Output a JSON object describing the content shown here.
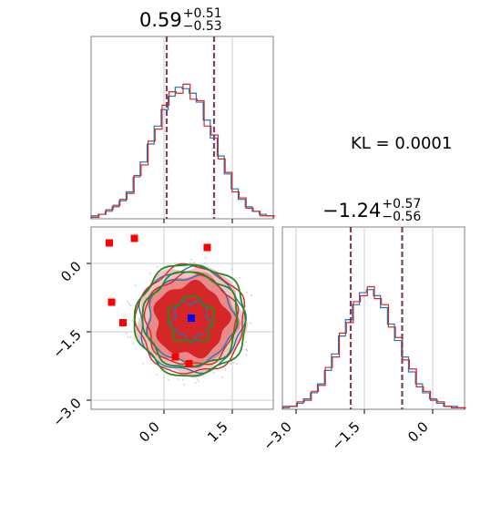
{
  "kl_text": "KL = 0.0001",
  "titles": {
    "param1": {
      "median": "0.59",
      "plus": "+0.51",
      "minus": "−0.53"
    },
    "param2": {
      "median": "−1.24",
      "plus": "+0.57",
      "minus": "−0.56"
    }
  },
  "colors": {
    "series_a": "#1f77b4",
    "series_b": "#d62728",
    "contour_green": "#228b22",
    "quantile_line": "#7f3f5f",
    "marker_red": "#ff0000",
    "marker_blue": "#0000ff"
  },
  "chart_data": [
    {
      "type": "histogram",
      "panel": "param1-marginal",
      "x_range": [
        -1.6,
        2.4
      ],
      "quantiles": {
        "low": 0.06,
        "median": 0.59,
        "high": 1.1
      },
      "xticks": [
        0.0,
        1.5
      ],
      "series": [
        {
          "color": "series_a",
          "values": [
            0.02,
            0.03,
            0.05,
            0.08,
            0.12,
            0.18,
            0.28,
            0.38,
            0.5,
            0.62,
            0.73,
            0.82,
            0.88,
            0.87,
            0.84,
            0.78,
            0.66,
            0.54,
            0.42,
            0.3,
            0.2,
            0.13,
            0.08,
            0.05,
            0.03,
            0.02
          ]
        },
        {
          "color": "series_b",
          "values": [
            0.01,
            0.03,
            0.06,
            0.09,
            0.13,
            0.17,
            0.29,
            0.36,
            0.52,
            0.6,
            0.76,
            0.85,
            0.84,
            0.9,
            0.8,
            0.79,
            0.62,
            0.56,
            0.4,
            0.31,
            0.18,
            0.14,
            0.07,
            0.05,
            0.02,
            0.02
          ]
        }
      ]
    },
    {
      "type": "histogram",
      "panel": "param2-marginal",
      "x_range": [
        -3.3,
        0.7
      ],
      "quantiles": {
        "low": -1.8,
        "median": -1.24,
        "high": -0.67
      },
      "xticks": [
        -3.0,
        -1.5,
        0.0
      ],
      "xtick_labels": [
        "−3.0",
        "−1.5",
        "0.0"
      ],
      "series": [
        {
          "color": "series_a",
          "values": [
            0.01,
            0.02,
            0.04,
            0.07,
            0.11,
            0.17,
            0.26,
            0.37,
            0.49,
            0.6,
            0.7,
            0.78,
            0.8,
            0.76,
            0.68,
            0.57,
            0.46,
            0.35,
            0.25,
            0.17,
            0.11,
            0.07,
            0.04,
            0.02,
            0.02,
            0.01
          ]
        },
        {
          "color": "series_b",
          "values": [
            0.02,
            0.02,
            0.05,
            0.06,
            0.12,
            0.16,
            0.28,
            0.35,
            0.51,
            0.58,
            0.72,
            0.76,
            0.82,
            0.74,
            0.7,
            0.55,
            0.48,
            0.33,
            0.27,
            0.15,
            0.12,
            0.06,
            0.05,
            0.02,
            0.01,
            0.01
          ]
        }
      ]
    },
    {
      "type": "scatter",
      "panel": "joint",
      "x_range": [
        -1.6,
        2.4
      ],
      "y_range": [
        -3.2,
        0.8
      ],
      "xticks": [
        0.0,
        1.5
      ],
      "xtick_labels": [
        "0.0",
        "1.5"
      ],
      "yticks": [
        0.0,
        -1.5,
        -3.0
      ],
      "ytick_labels": [
        "0.0",
        "−1.5",
        "−3.0"
      ],
      "center": [
        0.59,
        -1.24
      ],
      "contour_radii": [
        0.45,
        0.8,
        1.0,
        1.18
      ],
      "red_squares": [
        [
          -1.2,
          0.45
        ],
        [
          -0.65,
          0.55
        ],
        [
          0.95,
          0.35
        ],
        [
          -1.15,
          -0.85
        ],
        [
          -0.9,
          -1.3
        ],
        [
          0.25,
          -2.05
        ],
        [
          0.55,
          -2.2
        ]
      ],
      "blue_square": [
        0.6,
        -1.2
      ]
    }
  ]
}
